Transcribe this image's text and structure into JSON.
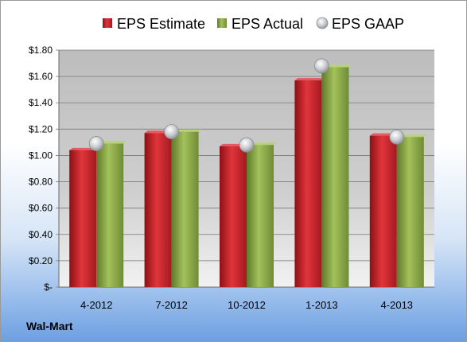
{
  "company": "Wal-Mart",
  "chart_data": {
    "type": "bar",
    "categories": [
      "4-2012",
      "7-2012",
      "10-2012",
      "1-2013",
      "4-2013"
    ],
    "series": [
      {
        "name": "EPS Estimate",
        "kind": "bar",
        "color": "#c0262c",
        "values": [
          1.04,
          1.17,
          1.07,
          1.57,
          1.15
        ]
      },
      {
        "name": "EPS Actual",
        "kind": "bar",
        "color": "#8aa84a",
        "values": [
          1.09,
          1.18,
          1.08,
          1.67,
          1.14
        ]
      },
      {
        "name": "EPS GAAP",
        "kind": "marker",
        "color": "#b8bcc2",
        "values": [
          1.09,
          1.18,
          1.08,
          1.68,
          1.14
        ]
      }
    ],
    "y_ticks": [
      "$-",
      "$0.20",
      "$0.40",
      "$0.60",
      "$0.80",
      "$1.00",
      "$1.20",
      "$1.40",
      "$1.60",
      "$1.80"
    ],
    "ylim": [
      0,
      1.8
    ],
    "grid": true,
    "legend_position": "top"
  }
}
